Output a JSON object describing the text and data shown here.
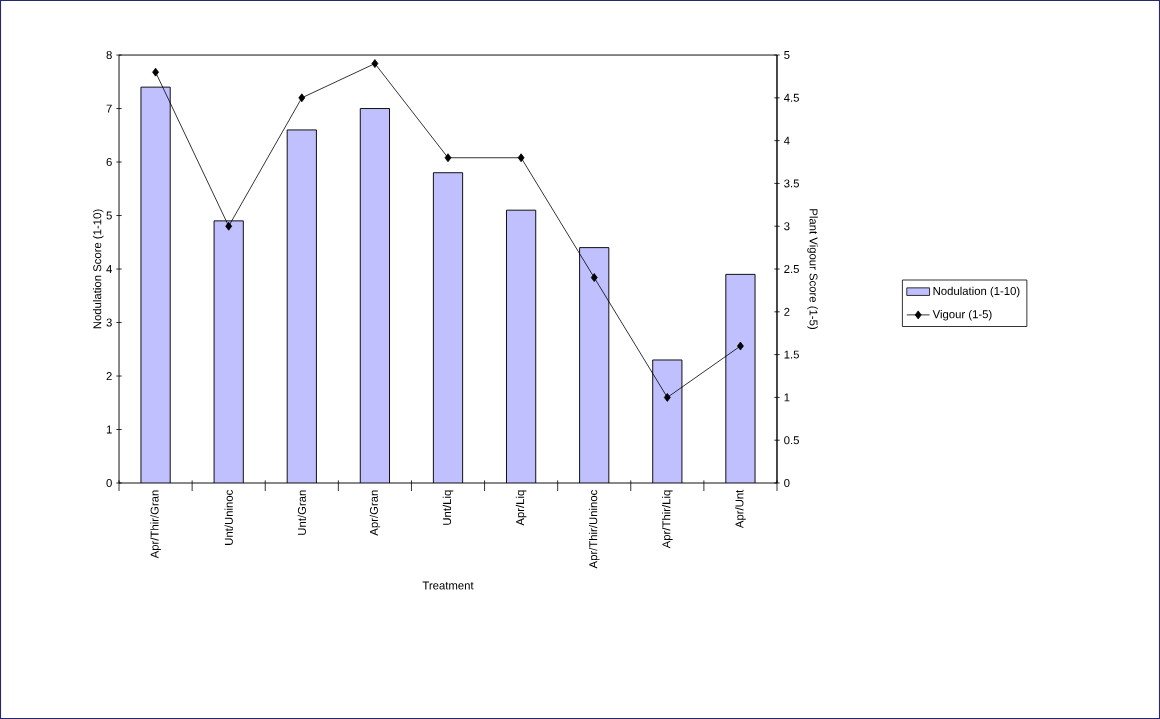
{
  "chart_data": {
    "type": "bar",
    "xlabel": "Treatment",
    "ylabel": "Nodulation Score (1-10)",
    "y2label": "Plant Vigour Score (1-5)",
    "categories": [
      "Apr/Thir/Gran",
      "Unt/Uninoc",
      "Unt/Gran",
      "Apr/Gran",
      "Unt/Liq",
      "Apr/Liq",
      "Apr/Thir/Uninoc",
      "Apr/Thir/Liq",
      "Apr/Unt"
    ],
    "series": [
      {
        "name": "Nodulation (1-10)",
        "color": "#c0c0ff",
        "values": [
          7.4,
          4.9,
          6.6,
          7.0,
          5.8,
          5.1,
          4.4,
          2.3,
          3.9
        ]
      },
      {
        "name": "Vigour (1-5)",
        "type": "line",
        "axis": "y2",
        "color": "#000000",
        "marker": "diamond",
        "values": [
          4.8,
          3.0,
          4.5,
          4.9,
          3.8,
          3.8,
          2.4,
          1.0,
          1.6
        ]
      }
    ],
    "ylim": [
      0,
      8
    ],
    "yticks": [
      0,
      1,
      2,
      3,
      4,
      5,
      6,
      7,
      8
    ],
    "y2lim": [
      0,
      5
    ],
    "y2ticks": [
      0,
      0.5,
      1,
      1.5,
      2,
      2.5,
      3,
      3.5,
      4,
      4.5,
      5
    ],
    "legend": "right",
    "grid": false
  }
}
